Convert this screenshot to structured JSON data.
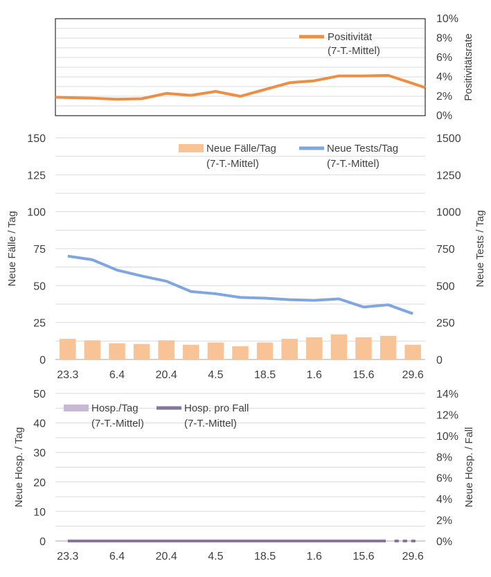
{
  "colors": {
    "positivity": "#ED8E45",
    "cases": "#F8C397",
    "tests": "#7FA6DE",
    "hosp_bar": "#C9B7D6",
    "hosp_line": "#86759F",
    "grid": "#D9D9D9",
    "axis": "#A6A6A6"
  },
  "x_tick_labels": [
    "23.3",
    "6.4",
    "20.4",
    "4.5",
    "18.5",
    "1.6",
    "15.6",
    "29.6"
  ],
  "chart_data": [
    {
      "type": "line",
      "ylabel_right": "Positivitätsrate",
      "ylim": [
        0,
        10
      ],
      "y_ticks": [
        "0%",
        "2%",
        "4%",
        "6%",
        "8%",
        "10%"
      ],
      "grid": true,
      "legend_position": "top-right",
      "series": [
        {
          "name": "Positivität",
          "name_line2": "(7-T.-Mittel)",
          "values": [
            1.9,
            1.8,
            1.7,
            1.75,
            2.3,
            2.1,
            2.5,
            2.0,
            2.7,
            3.4,
            3.6,
            4.1,
            4.1,
            4.15,
            2.9
          ]
        }
      ]
    },
    {
      "type": "bar",
      "ylabel_left": "Neue Fälle / Tag",
      "ylabel_right": "Neue Tests / Tag",
      "ylim_left": [
        0,
        150
      ],
      "ylim_right": [
        0,
        1500
      ],
      "y_ticks_left": [
        "0",
        "25",
        "50",
        "75",
        "100",
        "125",
        "150"
      ],
      "y_ticks_right": [
        "0",
        "250",
        "500",
        "750",
        "1000",
        "1250",
        "1500"
      ],
      "grid": true,
      "legend_position": "top-right",
      "series": [
        {
          "name": "Neue Fälle/Tag",
          "name_line2": "(7-T.-Mittel)",
          "kind": "bar",
          "values": [
            14,
            13,
            11,
            10.5,
            13,
            10,
            11.5,
            9,
            11.5,
            14,
            15,
            17,
            15,
            16,
            10
          ]
        },
        {
          "name": "Neue Tests/Tag",
          "name_line2": "(7-T.-Mittel)",
          "kind": "line",
          "values": [
            700,
            675,
            605,
            565,
            530,
            460,
            445,
            420,
            415,
            405,
            400,
            410,
            355,
            370,
            310
          ]
        }
      ]
    },
    {
      "type": "bar",
      "ylabel_left": "Neue Hosp. / Tag",
      "ylabel_right": "Neue Hosp. / Fall",
      "ylim_left": [
        0,
        50
      ],
      "ylim_right": [
        0,
        14
      ],
      "y_ticks_left": [
        "0",
        "10",
        "20",
        "30",
        "40",
        "50"
      ],
      "y_ticks_right": [
        "0%",
        "2%",
        "4%",
        "6%",
        "8%",
        "10%",
        "12%",
        "14%"
      ],
      "grid": true,
      "legend_position": "top-left",
      "series": [
        {
          "name": "Hosp./Tag",
          "name_line2": "(7-T.-Mittel)",
          "kind": "bar",
          "values": [
            0,
            0,
            0,
            0,
            0,
            0,
            0,
            0,
            0,
            0,
            0,
            0,
            0,
            0,
            0
          ]
        },
        {
          "name": "Hosp. pro Fall",
          "name_line2": "(7-T.-Mittel)",
          "kind": "line",
          "values": [
            0,
            0,
            0,
            0,
            0,
            0,
            0,
            0,
            0,
            0,
            0,
            0,
            0,
            0,
            0
          ]
        }
      ]
    }
  ]
}
